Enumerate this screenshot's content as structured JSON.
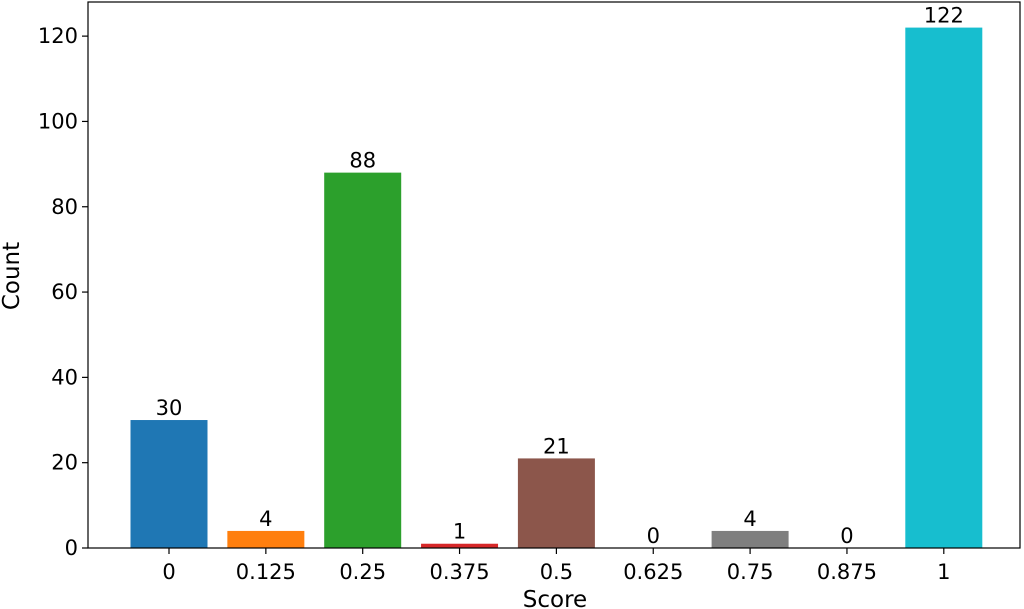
{
  "chart_data": {
    "type": "bar",
    "title": "",
    "xlabel": "Score",
    "ylabel": "Count",
    "categories": [
      "0",
      "0.125",
      "0.25",
      "0.375",
      "0.5",
      "0.625",
      "0.75",
      "0.875",
      "1"
    ],
    "values": [
      30,
      4,
      88,
      1,
      21,
      0,
      4,
      0,
      122
    ],
    "data_labels": [
      "30",
      "4",
      "88",
      "1",
      "21",
      "0",
      "4",
      "0",
      "122"
    ],
    "colors": [
      "#1f77b4",
      "#ff7f0e",
      "#2ca02c",
      "#d62728",
      "#8c564b",
      "#e377c2",
      "#7f7f7f",
      "#bcbd22",
      "#17becf"
    ],
    "ylim": [
      0,
      128
    ],
    "yticks": [
      0,
      20,
      40,
      60,
      80,
      100,
      120
    ],
    "grid": false,
    "legend": false
  }
}
